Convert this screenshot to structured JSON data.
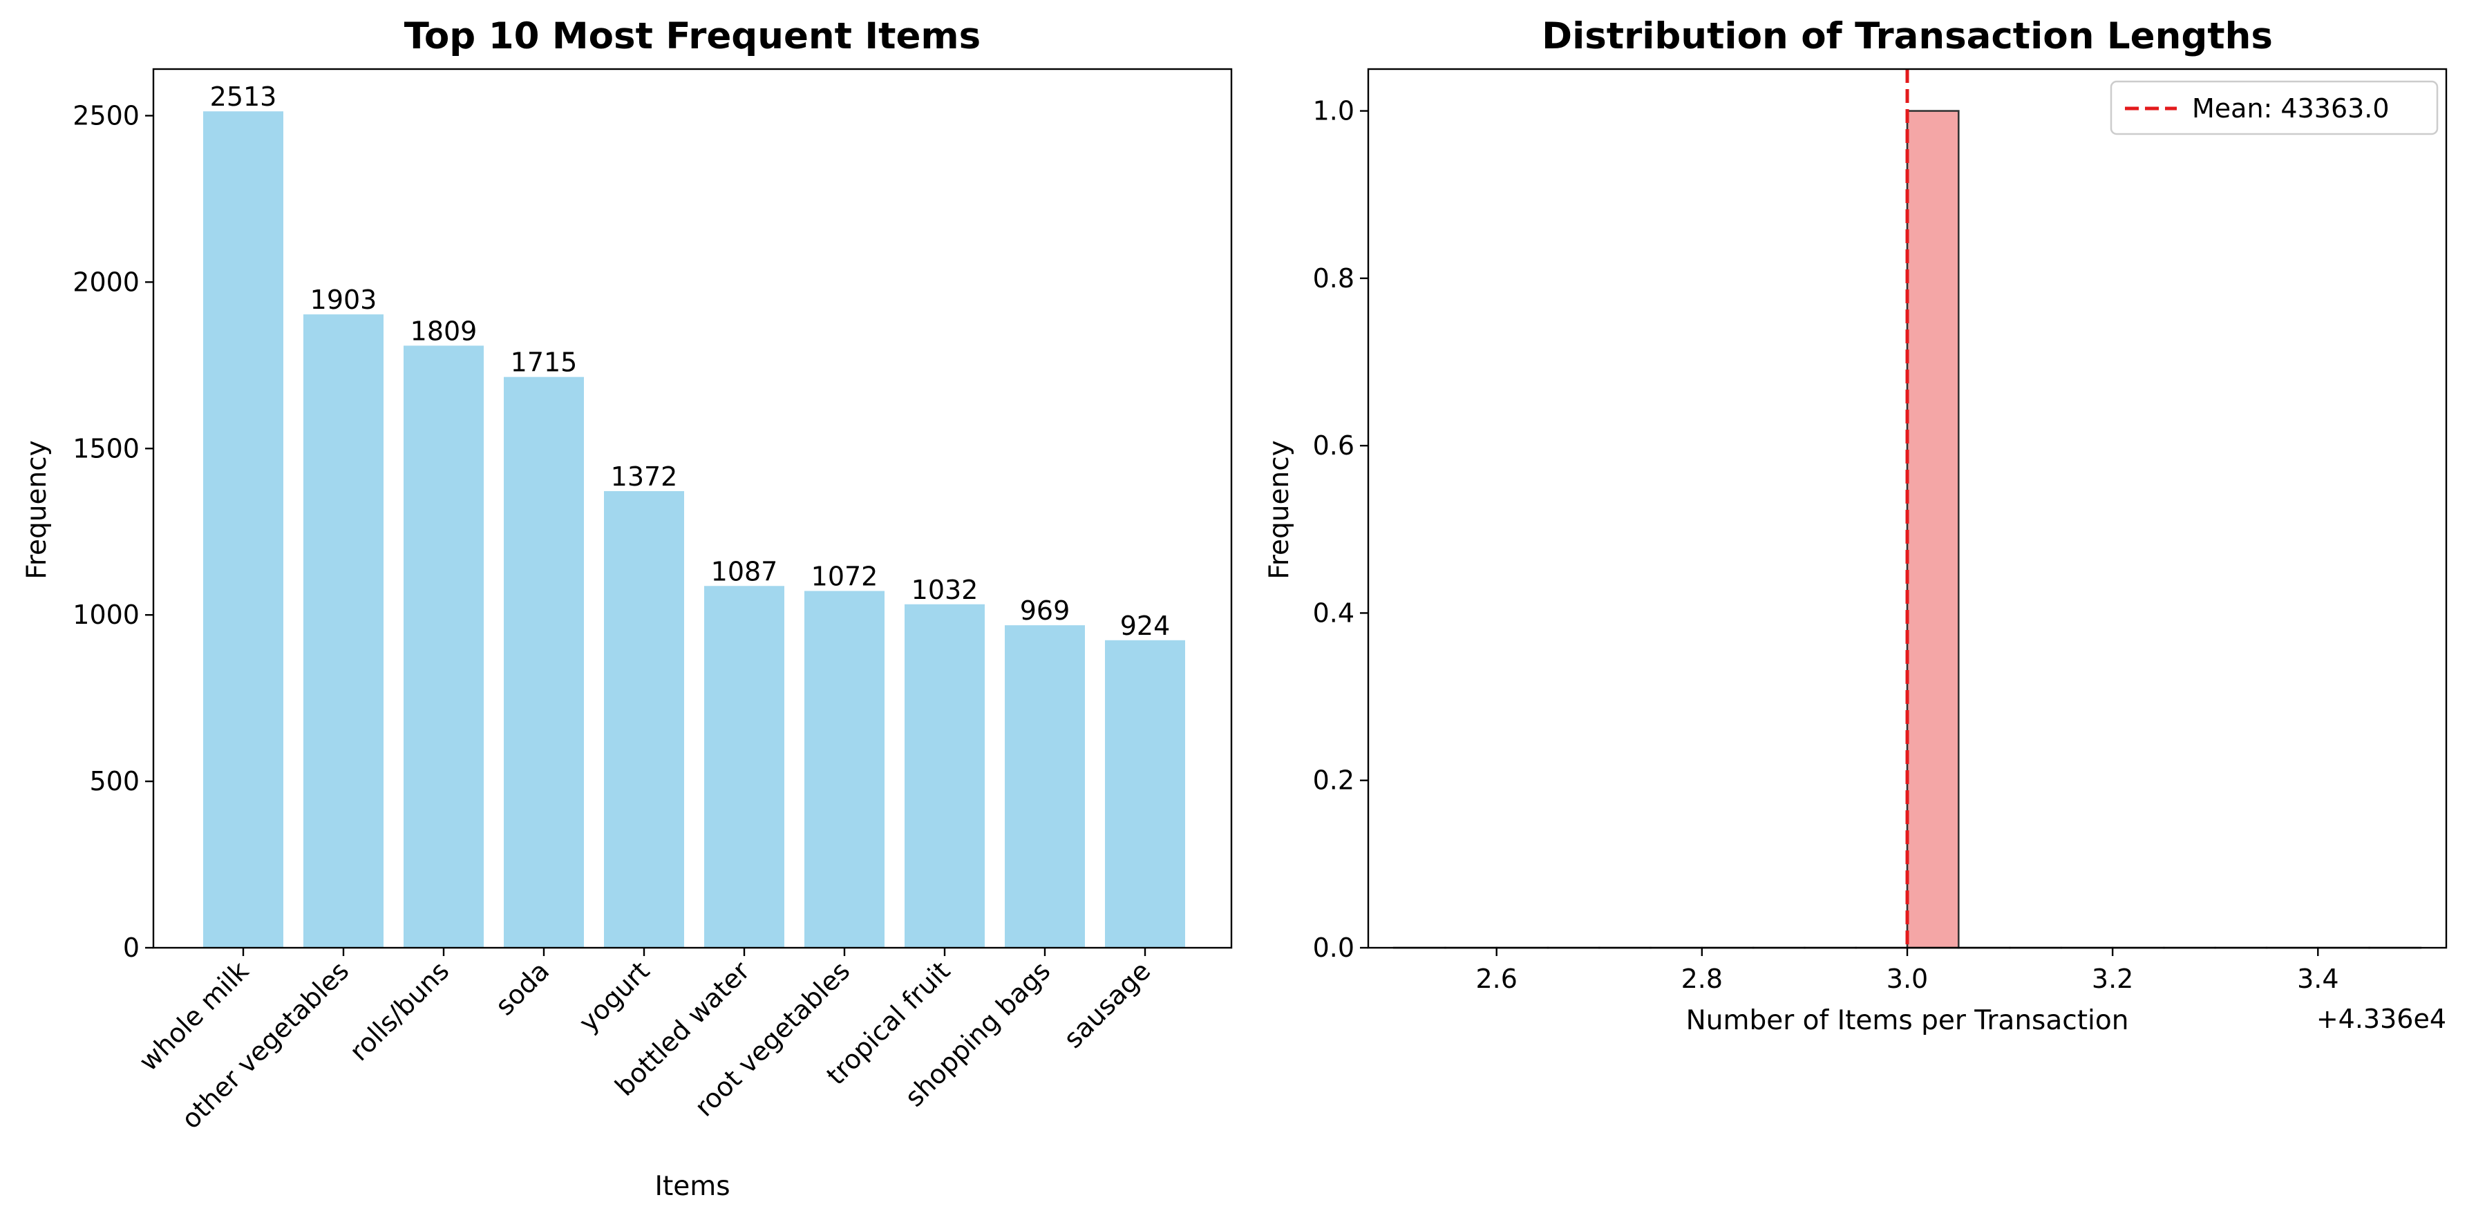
{
  "colors": {
    "bar_fill": "#a2d7ee",
    "hist_fill": "#f4a6a6",
    "hist_edge": "#333333",
    "mean_line": "#e31a1c",
    "axis": "#000000"
  },
  "chart_data": [
    {
      "type": "bar",
      "title": "Top 10 Most Frequent Items",
      "xlabel": "Items",
      "ylabel": "Frequency",
      "categories": [
        "whole milk",
        "other vegetables",
        "rolls/buns",
        "soda",
        "yogurt",
        "bottled water",
        "root vegetables",
        "tropical fruit",
        "shopping bags",
        "sausage"
      ],
      "values": [
        2513,
        1903,
        1809,
        1715,
        1372,
        1087,
        1072,
        1032,
        969,
        924
      ],
      "data_labels": [
        "2513",
        "1903",
        "1809",
        "1715",
        "1372",
        "1087",
        "1072",
        "1032",
        "969",
        "924"
      ],
      "ylim": [
        0,
        2640
      ],
      "yticks": [
        0,
        500,
        1000,
        1500,
        2000,
        2500
      ],
      "ytick_labels": [
        "0",
        "500",
        "1000",
        "1500",
        "2000",
        "2500"
      ],
      "grid": false,
      "tick_label_rotation": 45
    },
    {
      "type": "bar",
      "subtype": "histogram",
      "title": "Distribution of Transaction Lengths",
      "xlabel": "Number of Items per Transaction",
      "ylabel": "Frequency",
      "bins": [
        {
          "x0": 43362.5,
          "x1": 43362.55,
          "count": 0
        },
        {
          "x0": 43362.55,
          "x1": 43362.6,
          "count": 0
        },
        {
          "x0": 43362.6,
          "x1": 43362.65,
          "count": 0
        },
        {
          "x0": 43362.65,
          "x1": 43362.7,
          "count": 0
        },
        {
          "x0": 43362.7,
          "x1": 43362.75,
          "count": 0
        },
        {
          "x0": 43362.75,
          "x1": 43362.8,
          "count": 0
        },
        {
          "x0": 43362.8,
          "x1": 43362.85,
          "count": 0
        },
        {
          "x0": 43362.85,
          "x1": 43362.9,
          "count": 0
        },
        {
          "x0": 43362.9,
          "x1": 43362.95,
          "count": 0
        },
        {
          "x0": 43362.95,
          "x1": 43363.0,
          "count": 0
        },
        {
          "x0": 43363.0,
          "x1": 43363.05,
          "count": 1
        },
        {
          "x0": 43363.05,
          "x1": 43363.1,
          "count": 0
        },
        {
          "x0": 43363.1,
          "x1": 43363.15,
          "count": 0
        },
        {
          "x0": 43363.15,
          "x1": 43363.2,
          "count": 0
        },
        {
          "x0": 43363.2,
          "x1": 43363.25,
          "count": 0
        },
        {
          "x0": 43363.25,
          "x1": 43363.3,
          "count": 0
        },
        {
          "x0": 43363.3,
          "x1": 43363.35,
          "count": 0
        },
        {
          "x0": 43363.35,
          "x1": 43363.4,
          "count": 0
        },
        {
          "x0": 43363.4,
          "x1": 43363.45,
          "count": 0
        },
        {
          "x0": 43363.45,
          "x1": 43363.5,
          "count": 0
        }
      ],
      "xlim": [
        43362.475,
        43363.525
      ],
      "ylim": [
        0,
        1.05
      ],
      "xticks": [
        43362.6,
        43362.8,
        43363.0,
        43363.2,
        43363.4
      ],
      "xtick_labels": [
        "2.6",
        "2.8",
        "3.0",
        "3.2",
        "3.4"
      ],
      "x_offset_label": "+4.336e4",
      "yticks": [
        0,
        0.2,
        0.4,
        0.6,
        0.8,
        1.0
      ],
      "ytick_labels": [
        "0.0",
        "0.2",
        "0.4",
        "0.6",
        "0.8",
        "1.0"
      ],
      "mean_line": {
        "x": 43363.0,
        "style": "dashed"
      },
      "legend": {
        "position": "top-right",
        "entries": [
          "Mean: 43363.0"
        ]
      },
      "grid": false
    }
  ]
}
